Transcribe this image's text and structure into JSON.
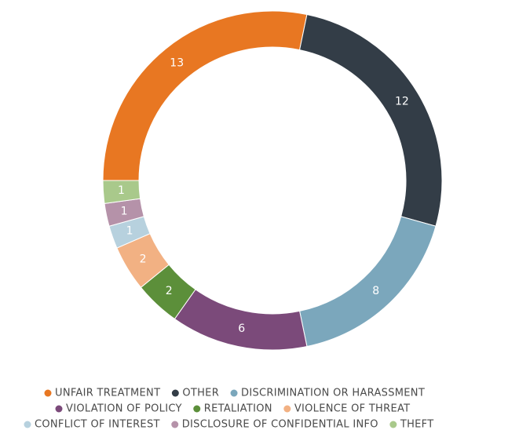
{
  "chart_data": {
    "type": "donut",
    "categories": [
      "UNFAIR TREATMENT",
      "OTHER",
      "DISCRIMINATION OR HARASSMENT",
      "VIOLATION OF POLICY",
      "RETALIATION",
      "VIOLENCE OF THREAT",
      "CONFLICT OF INTEREST",
      "DISCLOSURE OF CONFIDENTIAL INFO",
      "THEFT"
    ],
    "values": [
      13,
      12,
      8,
      6,
      2,
      2,
      1,
      1,
      1
    ],
    "colors": [
      "#e87722",
      "#333d47",
      "#7ba7bc",
      "#7b4a7a",
      "#5c8f3a",
      "#f2b183",
      "#b7d1de",
      "#b592a9",
      "#a9c98b"
    ]
  }
}
